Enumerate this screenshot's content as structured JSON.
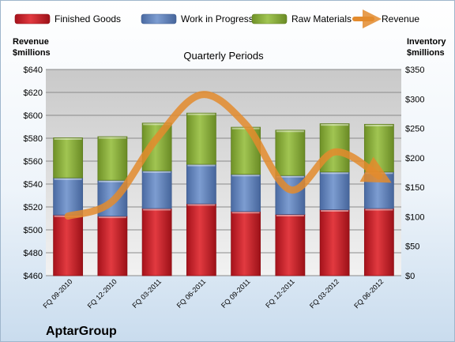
{
  "chart_data": {
    "type": "bar",
    "title": "Quarterly Periods",
    "company": "AptarGroup",
    "left_axis_label": [
      "Revenue",
      "$millions"
    ],
    "right_axis_label": [
      "Inventory",
      "$millions"
    ],
    "categories": [
      "FQ 09-2010",
      "FQ 12-2010",
      "FQ 03-2011",
      "FQ 06-2011",
      "FQ 09-2011",
      "FQ 12-2011",
      "FQ 03-2012",
      "FQ 06-2012"
    ],
    "left_axis": {
      "min": 460,
      "max": 640,
      "step": 20,
      "prefix": "$"
    },
    "right_axis": {
      "min": 0,
      "max": 350,
      "step": 50,
      "prefix": "$"
    },
    "series": [
      {
        "name": "Finished Goods",
        "axis": "right",
        "type": "stacked-bar",
        "color": "#cc2026",
        "values": [
          103,
          101,
          114,
          122,
          109,
          104,
          112,
          114
        ]
      },
      {
        "name": "Work in Progress",
        "axis": "right",
        "type": "stacked-bar",
        "color": "#5f82bd",
        "values": [
          63,
          61,
          64,
          67,
          63,
          66,
          64,
          62
        ]
      },
      {
        "name": "Raw Materials",
        "axis": "right",
        "type": "stacked-bar",
        "color": "#8db33a",
        "values": [
          68,
          74,
          81,
          87,
          80,
          77,
          82,
          81
        ]
      },
      {
        "name": "Revenue",
        "axis": "left",
        "type": "line",
        "color": "#e38b2d",
        "values": [
          512,
          525,
          580,
          618,
          592,
          535,
          568,
          547
        ]
      }
    ],
    "legend_position": "top",
    "grid": true
  }
}
